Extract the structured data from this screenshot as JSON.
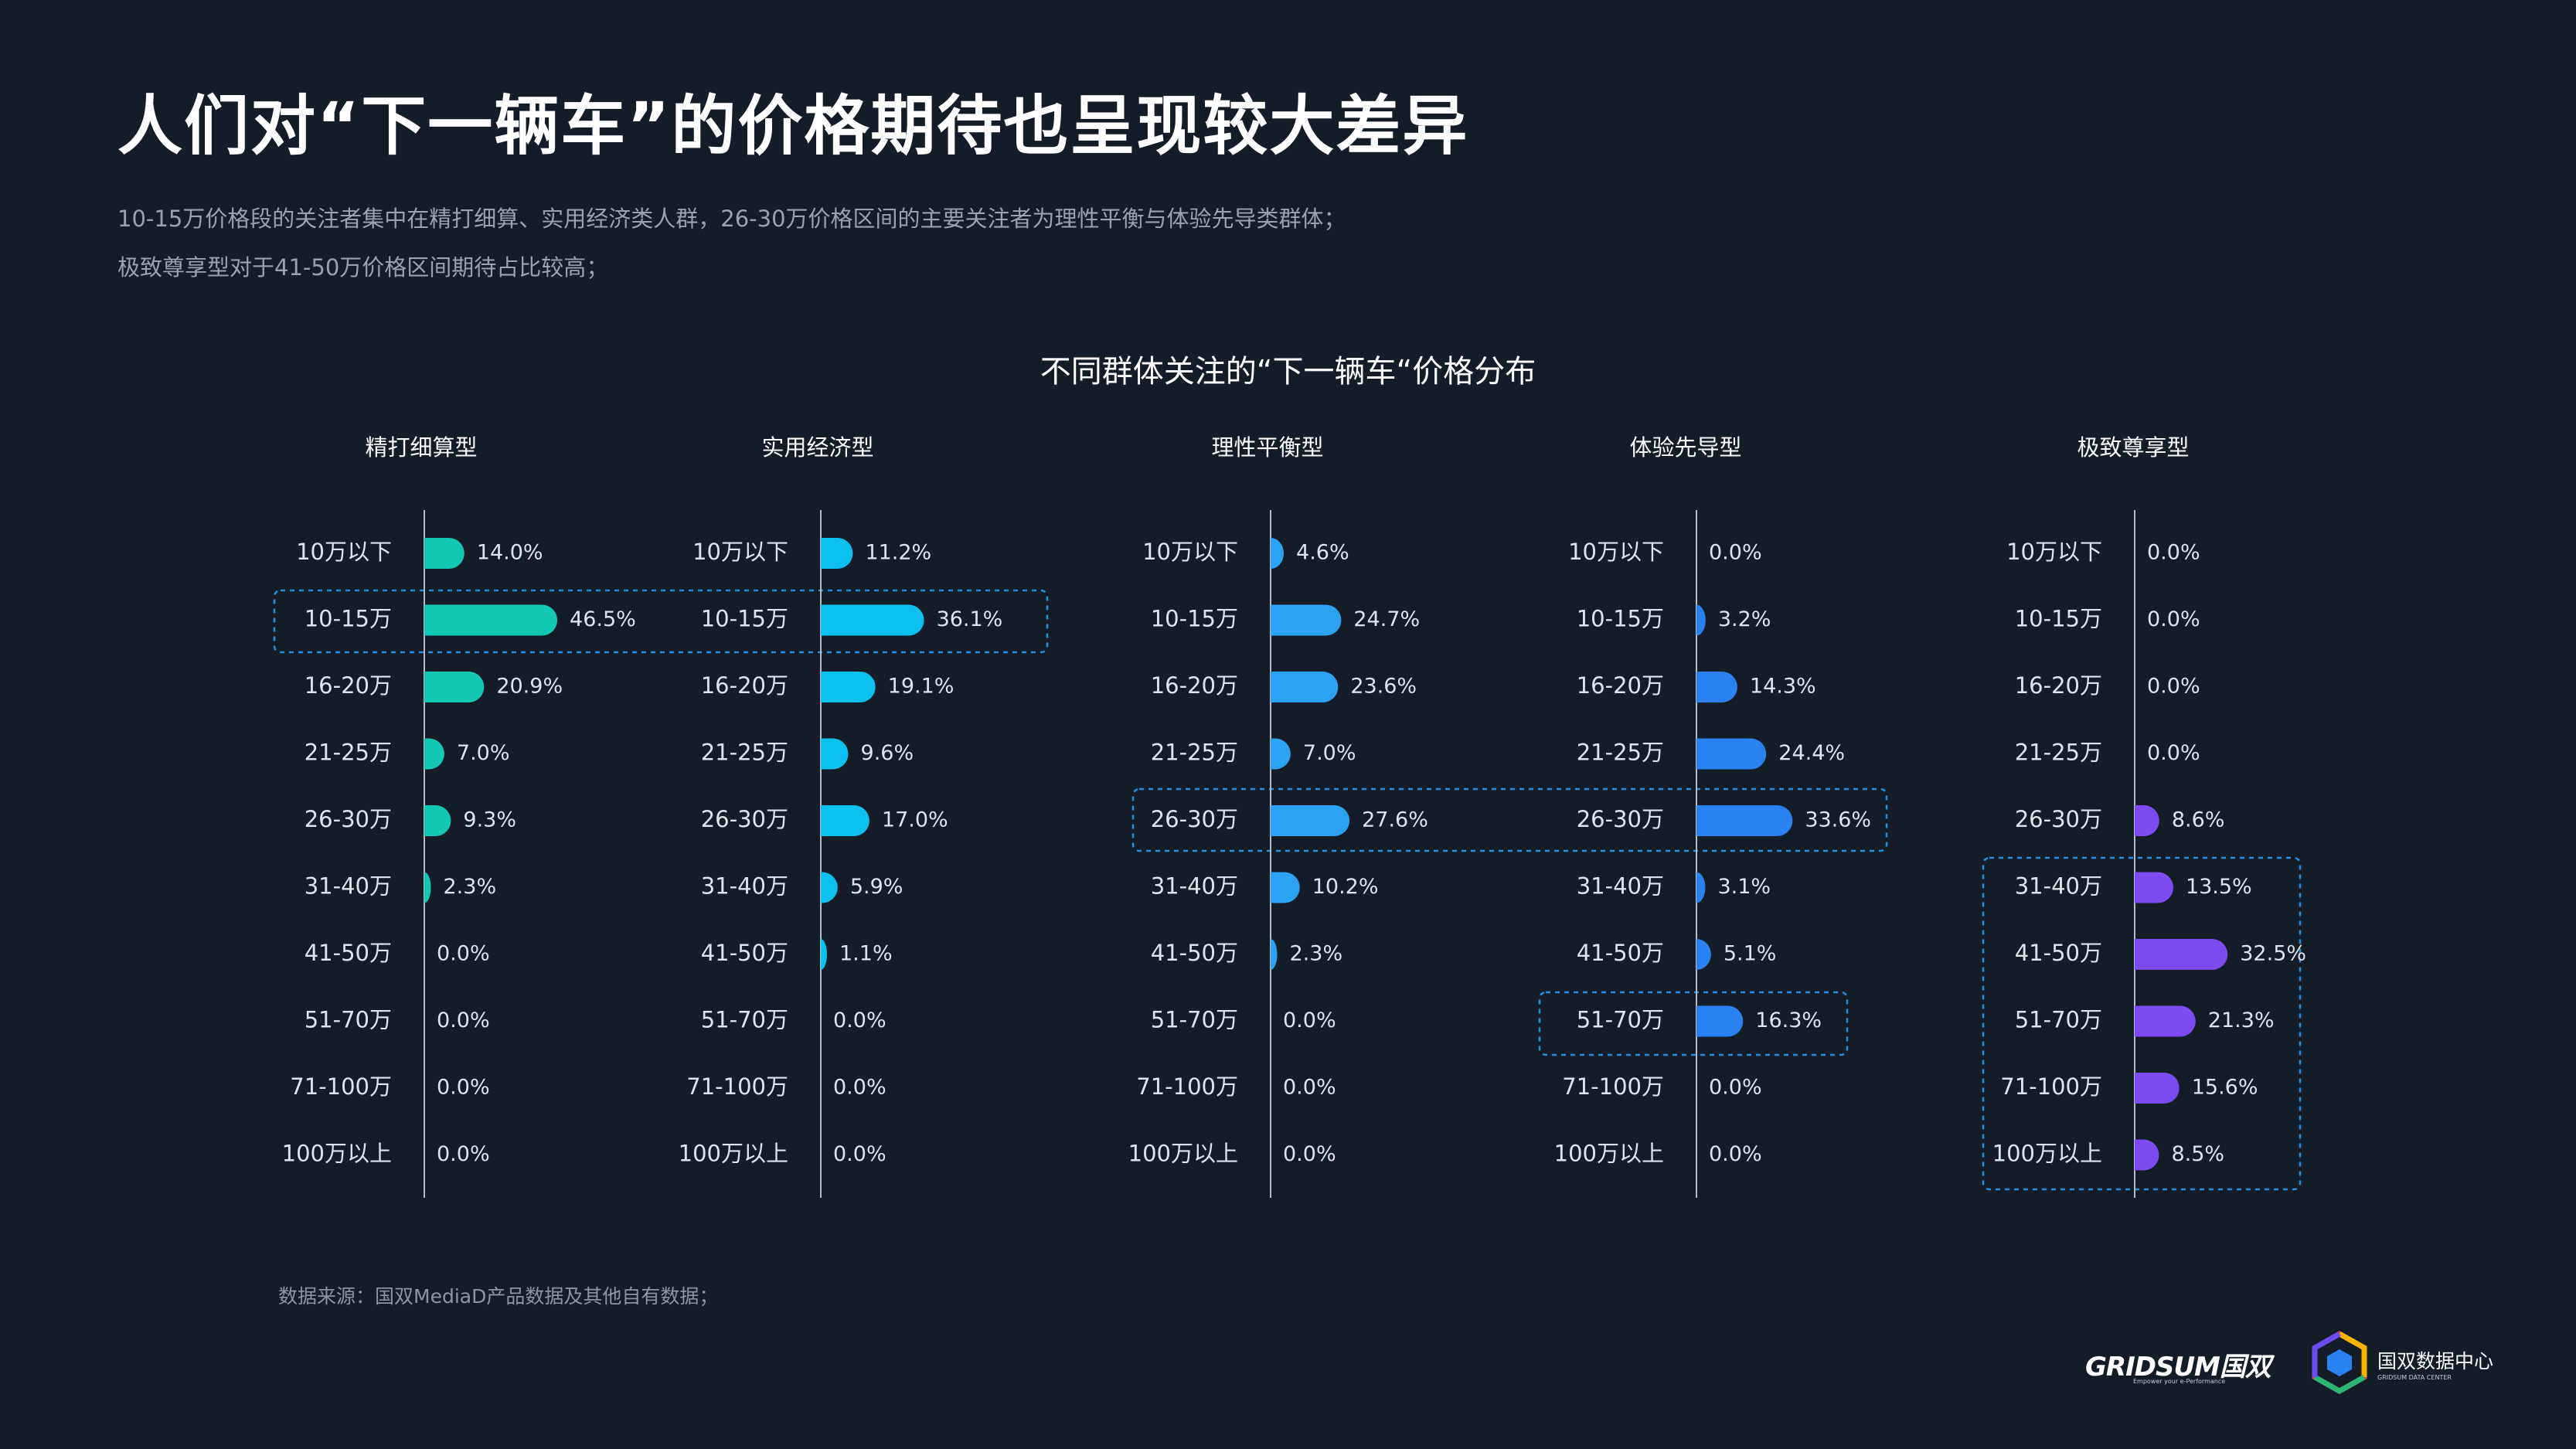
{
  "page": {
    "title": "人们对“下一辆车”的价格期待也呈现较大差异",
    "subtitle_line1": "10-15万价格段的关注者集中在精打细算、实用经济类人群，26-30万价格区间的主要关注者为理性平衡与体验先导类群体；",
    "subtitle_line2": "极致尊享型对于41-50万价格区间期待占比较高；",
    "source": "数据来源：国双MediaD产品数据及其他自有数据；",
    "logo_gridsum": "GRIDSUM国双",
    "logo_gridsum_tag": "Empower your e-Performance",
    "logo_dc_name": "国双数据中心",
    "logo_dc_sub": "GRIDSUM DATA CENTER"
  },
  "chart_data": {
    "type": "bar",
    "orientation": "horizontal",
    "title": "不同群体关注的“下一辆车“价格分布",
    "categories": [
      "10万以下",
      "10-15万",
      "16-20万",
      "21-25万",
      "26-30万",
      "31-40万",
      "41-50万",
      "51-70万",
      "71-100万",
      "100万以上"
    ],
    "value_format": "percent",
    "panels": [
      {
        "name": "精打细算型",
        "color": "#12c8b4",
        "values": [
          14.0,
          46.5,
          20.9,
          7.0,
          9.3,
          2.3,
          0.0,
          0.0,
          0.0,
          0.0
        ]
      },
      {
        "name": "实用经济型",
        "color": "#0cc0ef",
        "values": [
          11.2,
          36.1,
          19.1,
          9.6,
          17.0,
          5.9,
          1.1,
          0.0,
          0.0,
          0.0
        ]
      },
      {
        "name": "理性平衡型",
        "color": "#2ba2f2",
        "values": [
          4.6,
          24.7,
          23.6,
          7.0,
          27.6,
          10.2,
          2.3,
          0.0,
          0.0,
          0.0
        ]
      },
      {
        "name": "体验先导型",
        "color": "#2a82f0",
        "values": [
          0.0,
          3.2,
          14.3,
          24.4,
          33.6,
          3.1,
          5.1,
          16.3,
          0.0,
          0.0
        ]
      },
      {
        "name": "极致尊享型",
        "color": "#7c4cf0",
        "values": [
          0.0,
          0.0,
          0.0,
          0.0,
          8.6,
          13.5,
          32.5,
          21.3,
          15.6,
          8.5
        ]
      }
    ],
    "highlights": [
      {
        "panels": [
          "精打细算型",
          "实用经济型"
        ],
        "category": "10-15万"
      },
      {
        "panels": [
          "理性平衡型",
          "体验先导型"
        ],
        "category": "26-30万"
      },
      {
        "panels": [
          "体验先导型"
        ],
        "category": "51-70万"
      },
      {
        "panels": [
          "极致尊享型"
        ],
        "categories": [
          "31-40万",
          "41-50万",
          "51-70万",
          "71-100万",
          "100万以上"
        ]
      }
    ]
  }
}
